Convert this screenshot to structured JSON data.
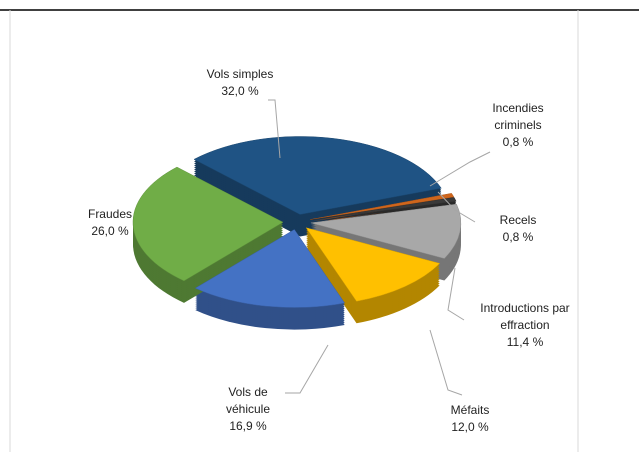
{
  "chart_data": {
    "type": "pie",
    "categories": [
      "Vols simples",
      "Incendies criminels",
      "Recels",
      "Introductions par effraction",
      "Méfaits",
      "Vols de véhicule",
      "Fraudes"
    ],
    "values": [
      32.0,
      0.8,
      0.8,
      11.4,
      12.0,
      16.9,
      26.0
    ],
    "value_labels": [
      "32,0 %",
      "0,8 %",
      "0,8 %",
      "11,4 %",
      "12,0 %",
      "16,9 %",
      "26,0 %"
    ],
    "colors": [
      "#1f5384",
      "#d0661c",
      "#3a3a3a",
      "#a8a8a8",
      "#ffc000",
      "#4472c4",
      "#70ad47"
    ]
  }
}
